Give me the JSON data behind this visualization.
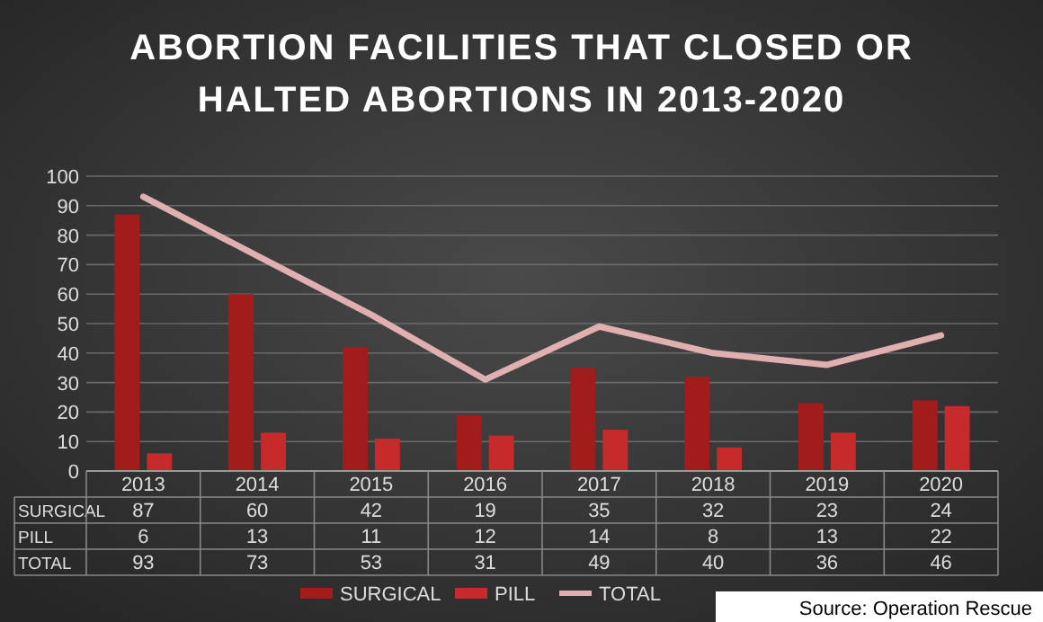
{
  "chart_data": {
    "type": "bar",
    "title": "ABORTION FACILITIES THAT CLOSED OR\nHALTED ABORTIONS IN 2013-2020",
    "categories": [
      "2013",
      "2014",
      "2015",
      "2016",
      "2017",
      "2018",
      "2019",
      "2020"
    ],
    "series": [
      {
        "name": "SURGICAL",
        "color": "#a31c1c",
        "values": [
          87,
          60,
          42,
          19,
          35,
          32,
          23,
          24
        ]
      },
      {
        "name": "PILL",
        "color": "#c62a2a",
        "values": [
          6,
          13,
          11,
          12,
          14,
          8,
          13,
          22
        ]
      },
      {
        "name": "TOTAL",
        "type": "line",
        "color": "#e0b0b0",
        "values": [
          93,
          73,
          53,
          31,
          49,
          40,
          36,
          46
        ]
      }
    ],
    "ylim": [
      0,
      100
    ],
    "yticks": [
      0,
      10,
      20,
      30,
      40,
      50,
      60,
      70,
      80,
      90,
      100
    ],
    "grid": "y",
    "legend": "bottom",
    "data_labels": true,
    "annotations": [
      "Source: Operation Rescue"
    ]
  }
}
